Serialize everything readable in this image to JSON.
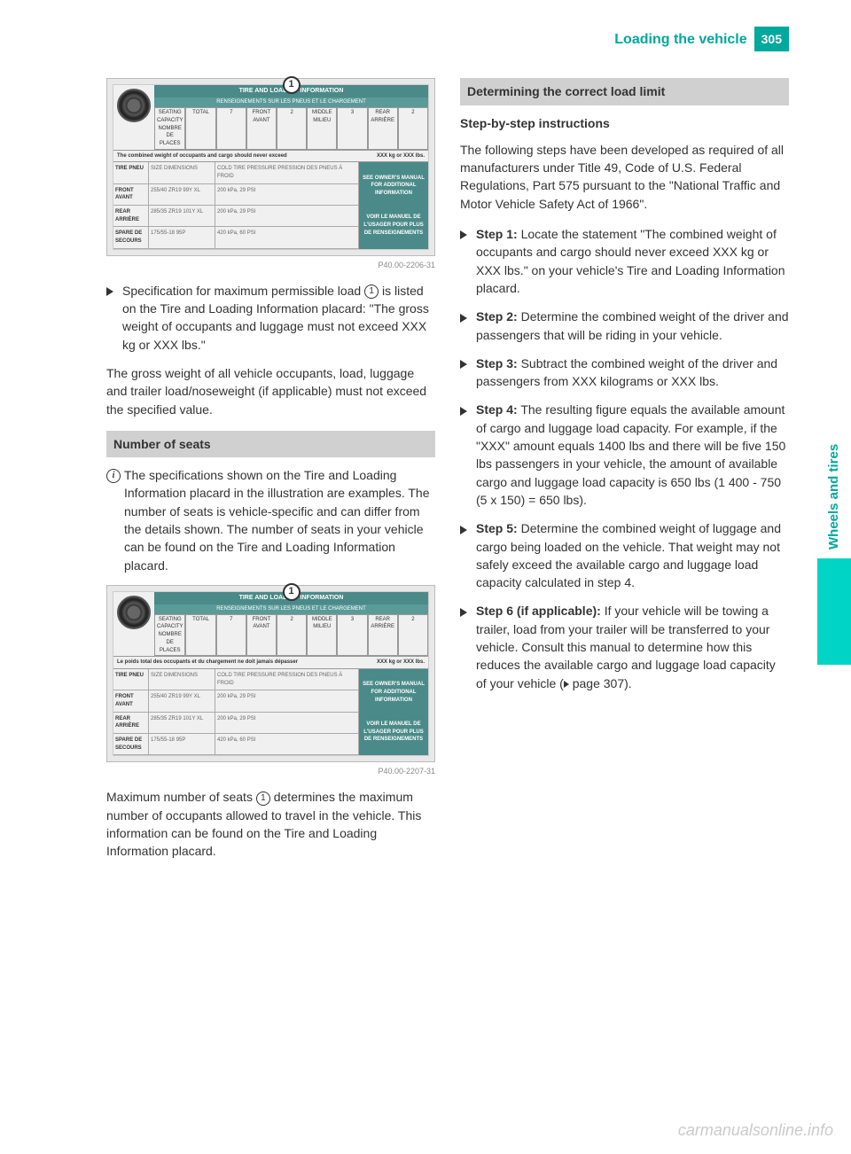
{
  "header": {
    "title": "Loading the vehicle",
    "page_number": "305"
  },
  "side_tab": "Wheels and tires",
  "placard_shared": {
    "title": "TIRE AND LOADING INFORMATION",
    "subtitle": "RENSEIGNEMENTS SUR LES PNEUS ET LE CHARGEMENT",
    "callout": "1",
    "seating_label": "SEATING CAPACITY\nNOMBRE DE PLACES",
    "total_label": "TOTAL",
    "total_val": "7",
    "front_label": "FRONT\nAVANT",
    "front_val": "2",
    "middle_label": "MIDDLE\nMILIEU",
    "middle_val": "3",
    "rear_label": "REAR\nARRIÈRE",
    "rear_val": "2",
    "weight_en": "The combined weight of occupants and cargo should never exceed",
    "weight_fr": "Le poids total des occupants et du chargement ne doit jamais dépasser",
    "weight_units": "XXX kg or XXX lbs.",
    "header_tire": "TIRE\nPNEU",
    "header_dim": "SIZE\nDIMENSIONS",
    "header_psi": "COLD TIRE PRESSURE\nPRESSION DES PNEUS À FROID",
    "rows": [
      {
        "label": "FRONT\nAVANT",
        "dim": "255/40 ZR19 99Y XL",
        "psi": "200 kPa, 29 PSI"
      },
      {
        "label": "REAR\nARRIÈRE",
        "dim": "285/35 ZR19 101Y XL",
        "psi": "200 kPa, 29 PSI"
      },
      {
        "label": "SPARE\nDE SECOURS",
        "dim": "175/55-18 95P",
        "psi": "420 kPa, 60 PSI"
      }
    ],
    "side_en": "SEE OWNER'S MANUAL FOR ADDITIONAL INFORMATION",
    "side_fr": "VOIR LE MANUEL DE L'USAGER POUR PLUS DE RENSEIGNEMENTS"
  },
  "left": {
    "placard1_ref": "P40.00-2206-31",
    "spec_text_1": "Specification for maximum permissible load ",
    "spec_circled": "1",
    "spec_text_2": " is listed on the Tire and Loading Information placard: \"The gross weight of occupants and luggage must not exceed XXX kg or XXX lbs.\"",
    "gross_weight": "The gross weight of all vehicle occupants, load, luggage and trailer load/noseweight (if applicable) must not exceed the specified value.",
    "section_seats": "Number of seats",
    "info_text": "The specifications shown on the Tire and Loading Information placard in the illustration are examples. The number of seats is vehicle-specific and can differ from the details shown. The number of seats in your vehicle can be found on the Tire and Loading Information placard.",
    "placard2_ref": "P40.00-2207-31",
    "max_seats_1": "Maximum number of seats ",
    "max_seats_circled": "1",
    "max_seats_2": " determines the maximum number of occupants allowed to travel in the vehicle. This information can be found on the Tire and Loading Information placard."
  },
  "right": {
    "section_load": "Determining the correct load limit",
    "subheading": "Step-by-step instructions",
    "intro": "The following steps have been developed as required of all manufacturers under Title 49, Code of U.S. Federal Regulations, Part 575 pursuant to the \"National Traffic and Motor Vehicle Safety Act of 1966\".",
    "steps": [
      {
        "label": "Step 1:",
        "text": " Locate the statement \"The combined weight of occupants and cargo should never exceed XXX kg or XXX lbs.\" on your vehicle's Tire and Loading Information placard."
      },
      {
        "label": "Step 2:",
        "text": " Determine the combined weight of the driver and passengers that will be riding in your vehicle."
      },
      {
        "label": "Step 3:",
        "text": " Subtract the combined weight of the driver and passengers from XXX kilograms or XXX lbs."
      },
      {
        "label": "Step 4:",
        "text": " The resulting figure equals the available amount of cargo and luggage load capacity. For example, if the \"XXX\" amount equals 1400 lbs and there will be five 150 lbs passengers in your vehicle, the amount of available cargo and luggage load capacity is 650 lbs (1 400 - 750 (5 x 150) = 650 lbs)."
      },
      {
        "label": "Step 5:",
        "text": " Determine the combined weight of luggage and cargo being loaded on the vehicle. That weight may not safely exceed the available cargo and luggage load capacity calculated in step 4."
      },
      {
        "label": "Step 6 (if applicable):",
        "text": " If your vehicle will be towing a trailer, load from your trailer will be transferred to your vehicle. Consult this manual to determine how this reduces the available cargo and luggage load capacity of your vehicle (",
        "ref": " page 307)."
      }
    ]
  },
  "watermark": "carmanualsonline.info",
  "colors": {
    "teal": "#00a89d",
    "teal_bright": "#00d4c4",
    "section_bg": "#d0d0d0"
  }
}
